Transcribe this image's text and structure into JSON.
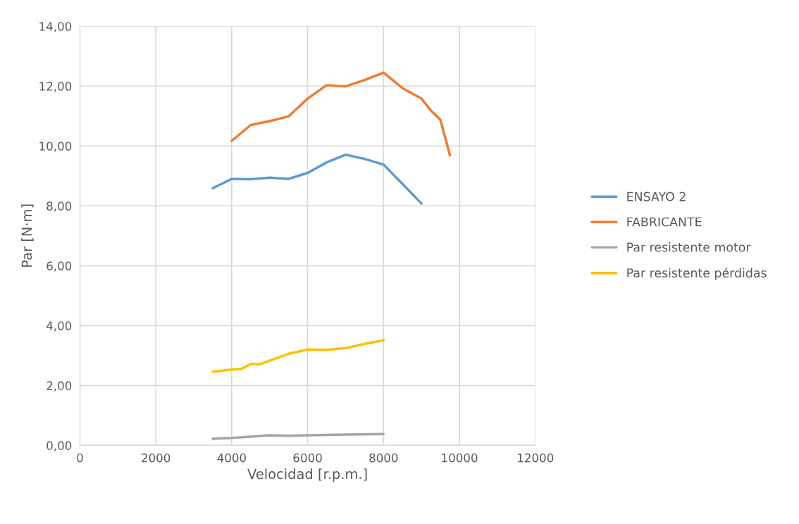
{
  "chart_data": {
    "type": "line",
    "xlabel": "Velocidad [r.p.m.]",
    "ylabel": "Par [N·m]",
    "xlim": [
      0,
      12000
    ],
    "xticks": [
      0,
      2000,
      4000,
      6000,
      8000,
      10000,
      12000
    ],
    "ylim": [
      0,
      14
    ],
    "yticks": [
      {
        "value": 0,
        "label": "0,00"
      },
      {
        "value": 2,
        "label": "2,00"
      },
      {
        "value": 4,
        "label": "4,00"
      },
      {
        "value": 6,
        "label": "6,00"
      },
      {
        "value": 8,
        "label": "8,00"
      },
      {
        "value": 10,
        "label": "10,00"
      },
      {
        "value": 12,
        "label": "12,00"
      },
      {
        "value": 14,
        "label": "14,00"
      }
    ],
    "grid": true,
    "legend": "right",
    "marker": "none",
    "line_style": "solid",
    "series": [
      {
        "name": "ENSAYO 2",
        "color": "#5b9bd5",
        "x": [
          3500,
          4000,
          4500,
          5000,
          5500,
          6000,
          6500,
          7000,
          7500,
          8000,
          9000
        ],
        "values": [
          8.59,
          8.9,
          8.89,
          8.94,
          8.9,
          9.1,
          9.45,
          9.71,
          9.57,
          9.38,
          8.08
        ]
      },
      {
        "name": "FABRICANTE",
        "color": "#ed7d31",
        "x": [
          4000,
          4500,
          5000,
          5500,
          6000,
          6500,
          7000,
          7500,
          8000,
          8500,
          9000,
          9250,
          9500,
          9750
        ],
        "values": [
          10.17,
          10.7,
          10.83,
          10.99,
          11.58,
          12.03,
          11.99,
          12.2,
          12.45,
          11.93,
          11.58,
          11.18,
          10.87,
          9.69
        ]
      },
      {
        "name": "Par resistente motor",
        "color": "#a5a5a5",
        "x": [
          3500,
          4000,
          4500,
          5000,
          5500,
          6000,
          7000,
          8000
        ],
        "values": [
          0.22,
          0.25,
          0.29,
          0.34,
          0.32,
          0.34,
          0.36,
          0.38
        ]
      },
      {
        "name": "Par resistente pérdidas",
        "color": "#ffc000",
        "x": [
          3500,
          4000,
          4250,
          4500,
          4750,
          5000,
          5500,
          6000,
          6500,
          7000,
          7500,
          8000
        ],
        "values": [
          2.46,
          2.53,
          2.55,
          2.72,
          2.71,
          2.83,
          3.06,
          3.2,
          3.19,
          3.25,
          3.39,
          3.51
        ]
      }
    ]
  }
}
